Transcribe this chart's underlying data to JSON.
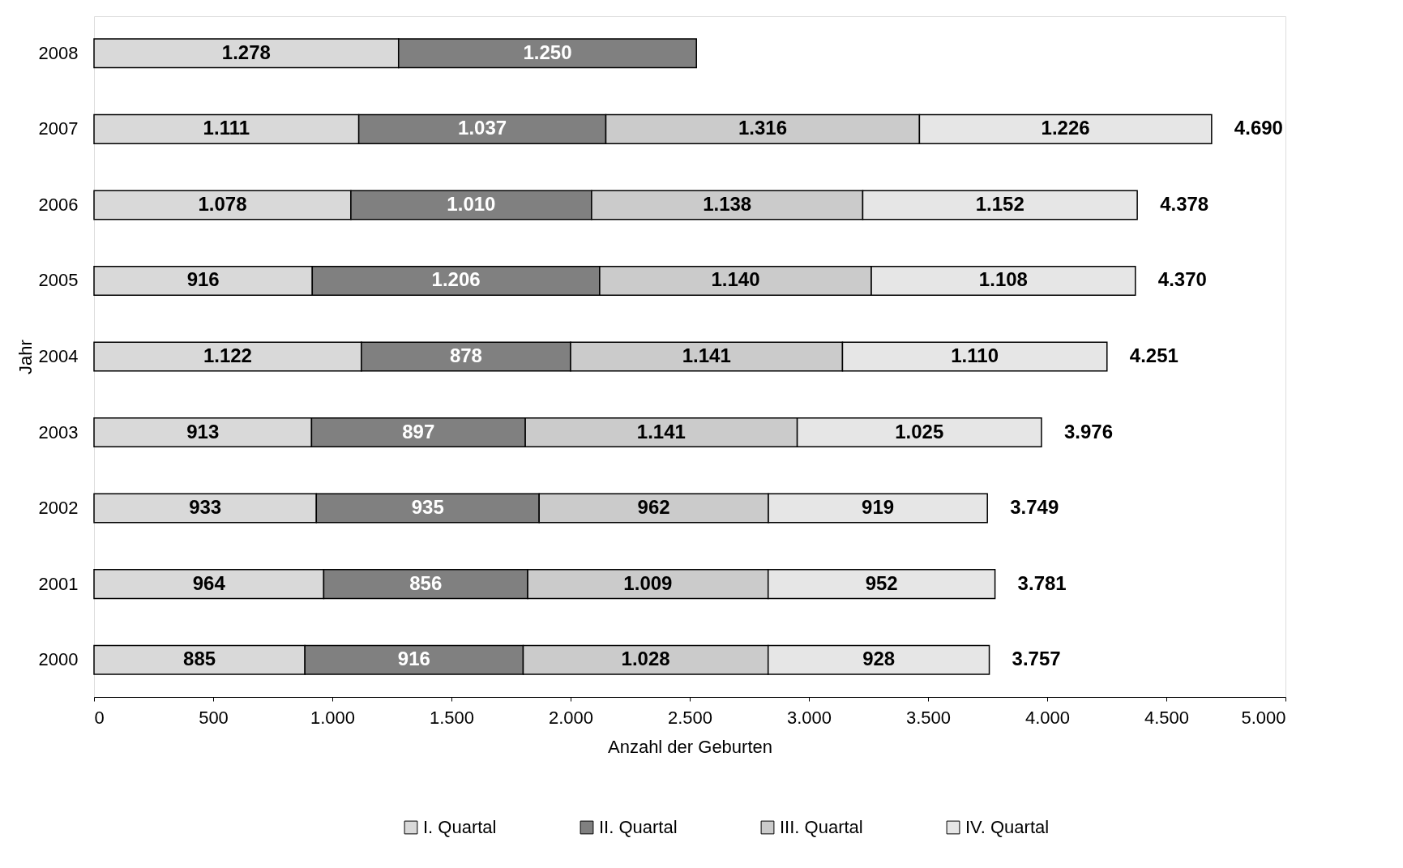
{
  "chart_data": {
    "type": "bar",
    "orientation": "horizontal",
    "stacked": true,
    "categories": [
      "2008",
      "2007",
      "2006",
      "2005",
      "2004",
      "2003",
      "2002",
      "2001",
      "2000"
    ],
    "series": [
      {
        "name": "I. Quartal",
        "color": "#d9d9d9",
        "values": [
          1278,
          1111,
          1078,
          916,
          1122,
          913,
          933,
          964,
          885
        ],
        "value_labels": [
          "1.278",
          "1.111",
          "1.078",
          "916",
          "1.122",
          "913",
          "933",
          "964",
          "885"
        ]
      },
      {
        "name": "II. Quartal",
        "color": "#808080",
        "values": [
          1250,
          1037,
          1010,
          1206,
          878,
          897,
          935,
          856,
          916
        ],
        "value_labels": [
          "1.250",
          "1.037",
          "1.010",
          "1.206",
          "878",
          "897",
          "935",
          "856",
          "916"
        ]
      },
      {
        "name": "III. Quartal",
        "color": "#cbcbcb",
        "values": [
          null,
          1316,
          1138,
          1140,
          1141,
          1141,
          962,
          1009,
          1028
        ],
        "value_labels": [
          null,
          "1.316",
          "1.138",
          "1.140",
          "1.141",
          "1.141",
          "962",
          "1.009",
          "1.028"
        ]
      },
      {
        "name": "IV. Quartal",
        "color": "#e6e6e6",
        "values": [
          null,
          1226,
          1152,
          1108,
          1110,
          1025,
          919,
          952,
          928
        ],
        "value_labels": [
          null,
          "1.226",
          "1.152",
          "1.108",
          "1.110",
          "1.025",
          "919",
          "952",
          "928"
        ]
      }
    ],
    "totals": [
      null,
      "4.690",
      "4.378",
      "4.370",
      "4.251",
      "3.976",
      "3.749",
      "3.781",
      "3.757"
    ],
    "xlim": [
      0,
      5000
    ],
    "xticks": [
      0,
      500,
      {
        "value": 1000,
        "label": "1.000"
      },
      {
        "value": 1500,
        "label": "1.500"
      },
      {
        "value": 2000,
        "label": "2.000"
      },
      {
        "value": 2500,
        "label": "2.500"
      },
      {
        "value": 3000,
        "label": "3.000"
      },
      {
        "value": 3500,
        "label": "3.500"
      },
      {
        "value": 4000,
        "label": "4.000"
      },
      {
        "value": 4500,
        "label": "4.500"
      },
      {
        "value": 5000,
        "label": "5.000"
      }
    ],
    "xlabel": "Anzahl der Geburten",
    "ylabel": "Jahr",
    "legend": "bottom",
    "grid": false
  }
}
